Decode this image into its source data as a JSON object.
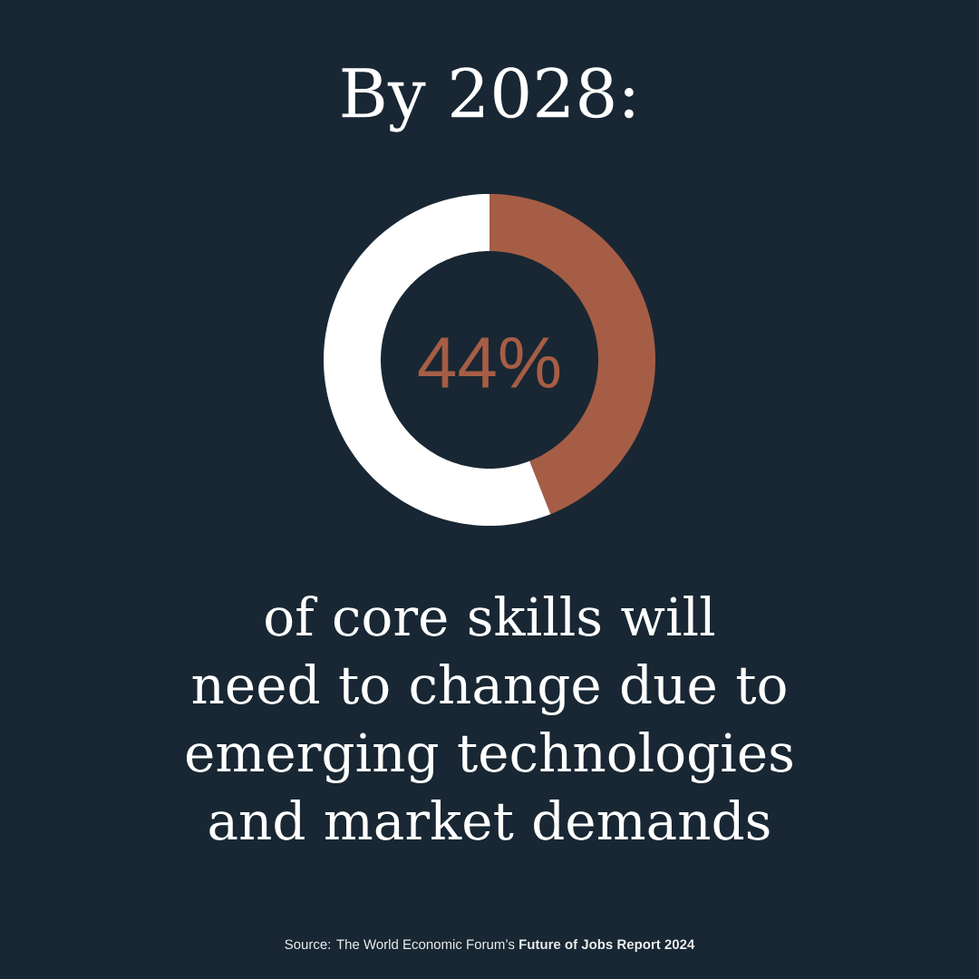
{
  "chart_data": {
    "type": "donut",
    "title": "By 2028:",
    "categories": [
      null,
      null
    ],
    "values": [
      44,
      56
    ],
    "colors": [
      "#a65d45",
      "#ffffff"
    ],
    "annotations": [
      "44%",
      "of core skills will need to change due to emerging technologies and market demands",
      "Source: The World Economic Forum’s **Future of Jobs Report 2024**"
    ]
  }
}
